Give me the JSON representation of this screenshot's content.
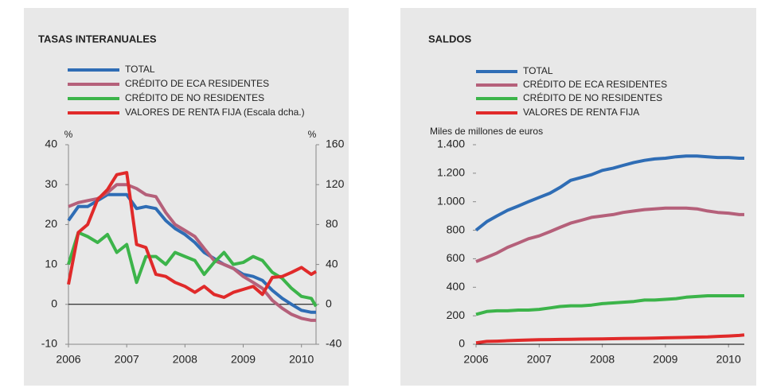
{
  "chart_data": [
    {
      "type": "line",
      "title": "TASAS INTERANUALES",
      "y_label": "%",
      "y2_label": "%",
      "x": [
        2006,
        2006.17,
        2006.33,
        2006.5,
        2006.67,
        2006.83,
        2007,
        2007.17,
        2007.33,
        2007.5,
        2007.67,
        2007.83,
        2008,
        2008.17,
        2008.33,
        2008.5,
        2008.67,
        2008.83,
        2009,
        2009.17,
        2009.33,
        2009.5,
        2009.67,
        2009.83,
        2010,
        2010.17,
        2010.25
      ],
      "xlim": [
        2006,
        2010.25
      ],
      "xticks": [
        2006,
        2007,
        2008,
        2009,
        2010
      ],
      "ylim": [
        -10,
        40
      ],
      "yticks": [
        -10,
        0,
        10,
        20,
        30,
        40
      ],
      "y2lim": [
        -40,
        160
      ],
      "y2ticks": [
        -40,
        0,
        40,
        80,
        120,
        160
      ],
      "series": [
        {
          "name": "TOTAL",
          "color": "#2f6db5",
          "values": [
            21,
            24.5,
            24.5,
            26,
            27.5,
            27.5,
            27.5,
            24,
            24.5,
            24,
            21,
            19,
            17.5,
            15.5,
            13,
            11.5,
            10,
            9,
            7.5,
            7,
            6,
            3.5,
            1.5,
            0,
            -1.5,
            -2,
            -2
          ]
        },
        {
          "name": "CRÉDITO DE ECA RESIDENTES",
          "color": "#b5607a",
          "values": [
            24.5,
            25.5,
            26,
            26.5,
            28,
            30,
            30,
            29,
            27.5,
            27,
            23,
            20,
            18.5,
            17,
            14,
            11,
            10,
            9,
            7,
            5.5,
            4,
            1,
            -1,
            -2.5,
            -3.5,
            -4,
            -4
          ]
        },
        {
          "name": "CRÉDITO DE NO RESIDENTES",
          "color": "#3cb44a",
          "values": [
            10,
            18,
            17,
            15.5,
            17.5,
            13,
            15,
            5.5,
            12,
            12,
            10,
            13,
            12,
            11,
            7.5,
            10.5,
            13,
            10,
            10.5,
            12,
            11,
            8,
            6.5,
            4,
            2,
            1.5,
            -0.5
          ]
        },
        {
          "name": "VALORES DE RENTA FIJA (Escala dcha.)",
          "color": "#e02a2a",
          "axis": "y2",
          "values": [
            20,
            72,
            80,
            105,
            115,
            130,
            132,
            60,
            57,
            30,
            28,
            22,
            18,
            12,
            18,
            10,
            7,
            12,
            15,
            18,
            10,
            27,
            28,
            32,
            37,
            30,
            33
          ]
        }
      ]
    },
    {
      "type": "line",
      "title": "SALDOS",
      "y_label": "Miles de millones de euros",
      "x": [
        2006,
        2006.17,
        2006.33,
        2006.5,
        2006.67,
        2006.83,
        2007,
        2007.17,
        2007.33,
        2007.5,
        2007.67,
        2007.83,
        2008,
        2008.17,
        2008.33,
        2008.5,
        2008.67,
        2008.83,
        2009,
        2009.17,
        2009.33,
        2009.5,
        2009.67,
        2009.83,
        2010,
        2010.17,
        2010.25
      ],
      "xlim": [
        2006,
        2010.25
      ],
      "xticks": [
        2006,
        2007,
        2008,
        2009,
        2010
      ],
      "ylim": [
        0,
        1400
      ],
      "yticks": [
        0,
        200,
        400,
        600,
        800,
        {
          "value": 1000,
          "label": "1.000"
        },
        {
          "value": 1200,
          "label": "1.200"
        },
        {
          "value": 1400,
          "label": "1.400"
        }
      ],
      "series": [
        {
          "name": "TOTAL",
          "color": "#2f6db5",
          "values": [
            800,
            860,
            900,
            940,
            970,
            1000,
            1030,
            1060,
            1100,
            1150,
            1170,
            1190,
            1220,
            1235,
            1255,
            1275,
            1290,
            1300,
            1305,
            1315,
            1320,
            1320,
            1315,
            1310,
            1310,
            1305,
            1305
          ]
        },
        {
          "name": "CRÉDITO DE ECA RESIDENTES",
          "color": "#b5607a",
          "values": [
            580,
            610,
            640,
            680,
            710,
            740,
            760,
            790,
            820,
            850,
            870,
            890,
            900,
            910,
            925,
            935,
            945,
            950,
            955,
            955,
            955,
            950,
            935,
            925,
            920,
            910,
            910
          ]
        },
        {
          "name": "CRÉDITO DE NO RESIDENTES",
          "color": "#3cb44a",
          "values": [
            210,
            230,
            235,
            235,
            240,
            240,
            245,
            255,
            265,
            270,
            270,
            275,
            285,
            290,
            295,
            300,
            310,
            310,
            315,
            320,
            330,
            335,
            340,
            340,
            340,
            340,
            340
          ]
        },
        {
          "name": "VALORES DE RENTA FIJA",
          "color": "#e02a2a",
          "values": [
            10,
            20,
            22,
            25,
            28,
            30,
            32,
            33,
            34,
            35,
            36,
            37,
            38,
            39,
            40,
            41,
            42,
            43,
            45,
            47,
            48,
            50,
            52,
            55,
            58,
            62,
            65
          ]
        }
      ]
    }
  ]
}
